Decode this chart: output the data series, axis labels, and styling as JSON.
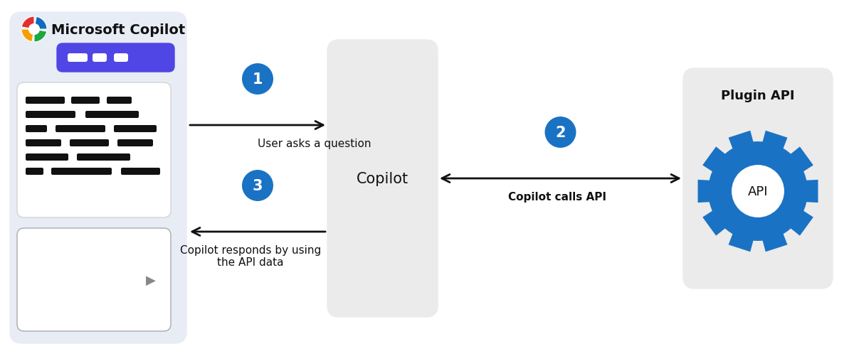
{
  "bg_color": "#ffffff",
  "copilot_panel_color": "#e8ecf5",
  "center_box_color": "#ebebeb",
  "plugin_box_color": "#ebebeb",
  "gear_color": "#1a72c4",
  "circle_number_color": "#1a72c4",
  "arrow_color": "#111111",
  "prompt_bar_color": "#4f46e5",
  "text_color": "#111111",
  "title_text": "Microsoft Copilot",
  "title_fontsize": 13,
  "copilot_label": "Copilot",
  "plugin_label": "Plugin API",
  "api_label": "API",
  "label1": "User asks a question",
  "label2": "Copilot calls API",
  "label3": "Copilot responds by using\nthe API data",
  "num1": "1",
  "num2": "2",
  "num3": "3",
  "logo_colors": [
    "#e52d2d",
    "#f59e00",
    "#1ba83f",
    "#0f6cbd"
  ]
}
